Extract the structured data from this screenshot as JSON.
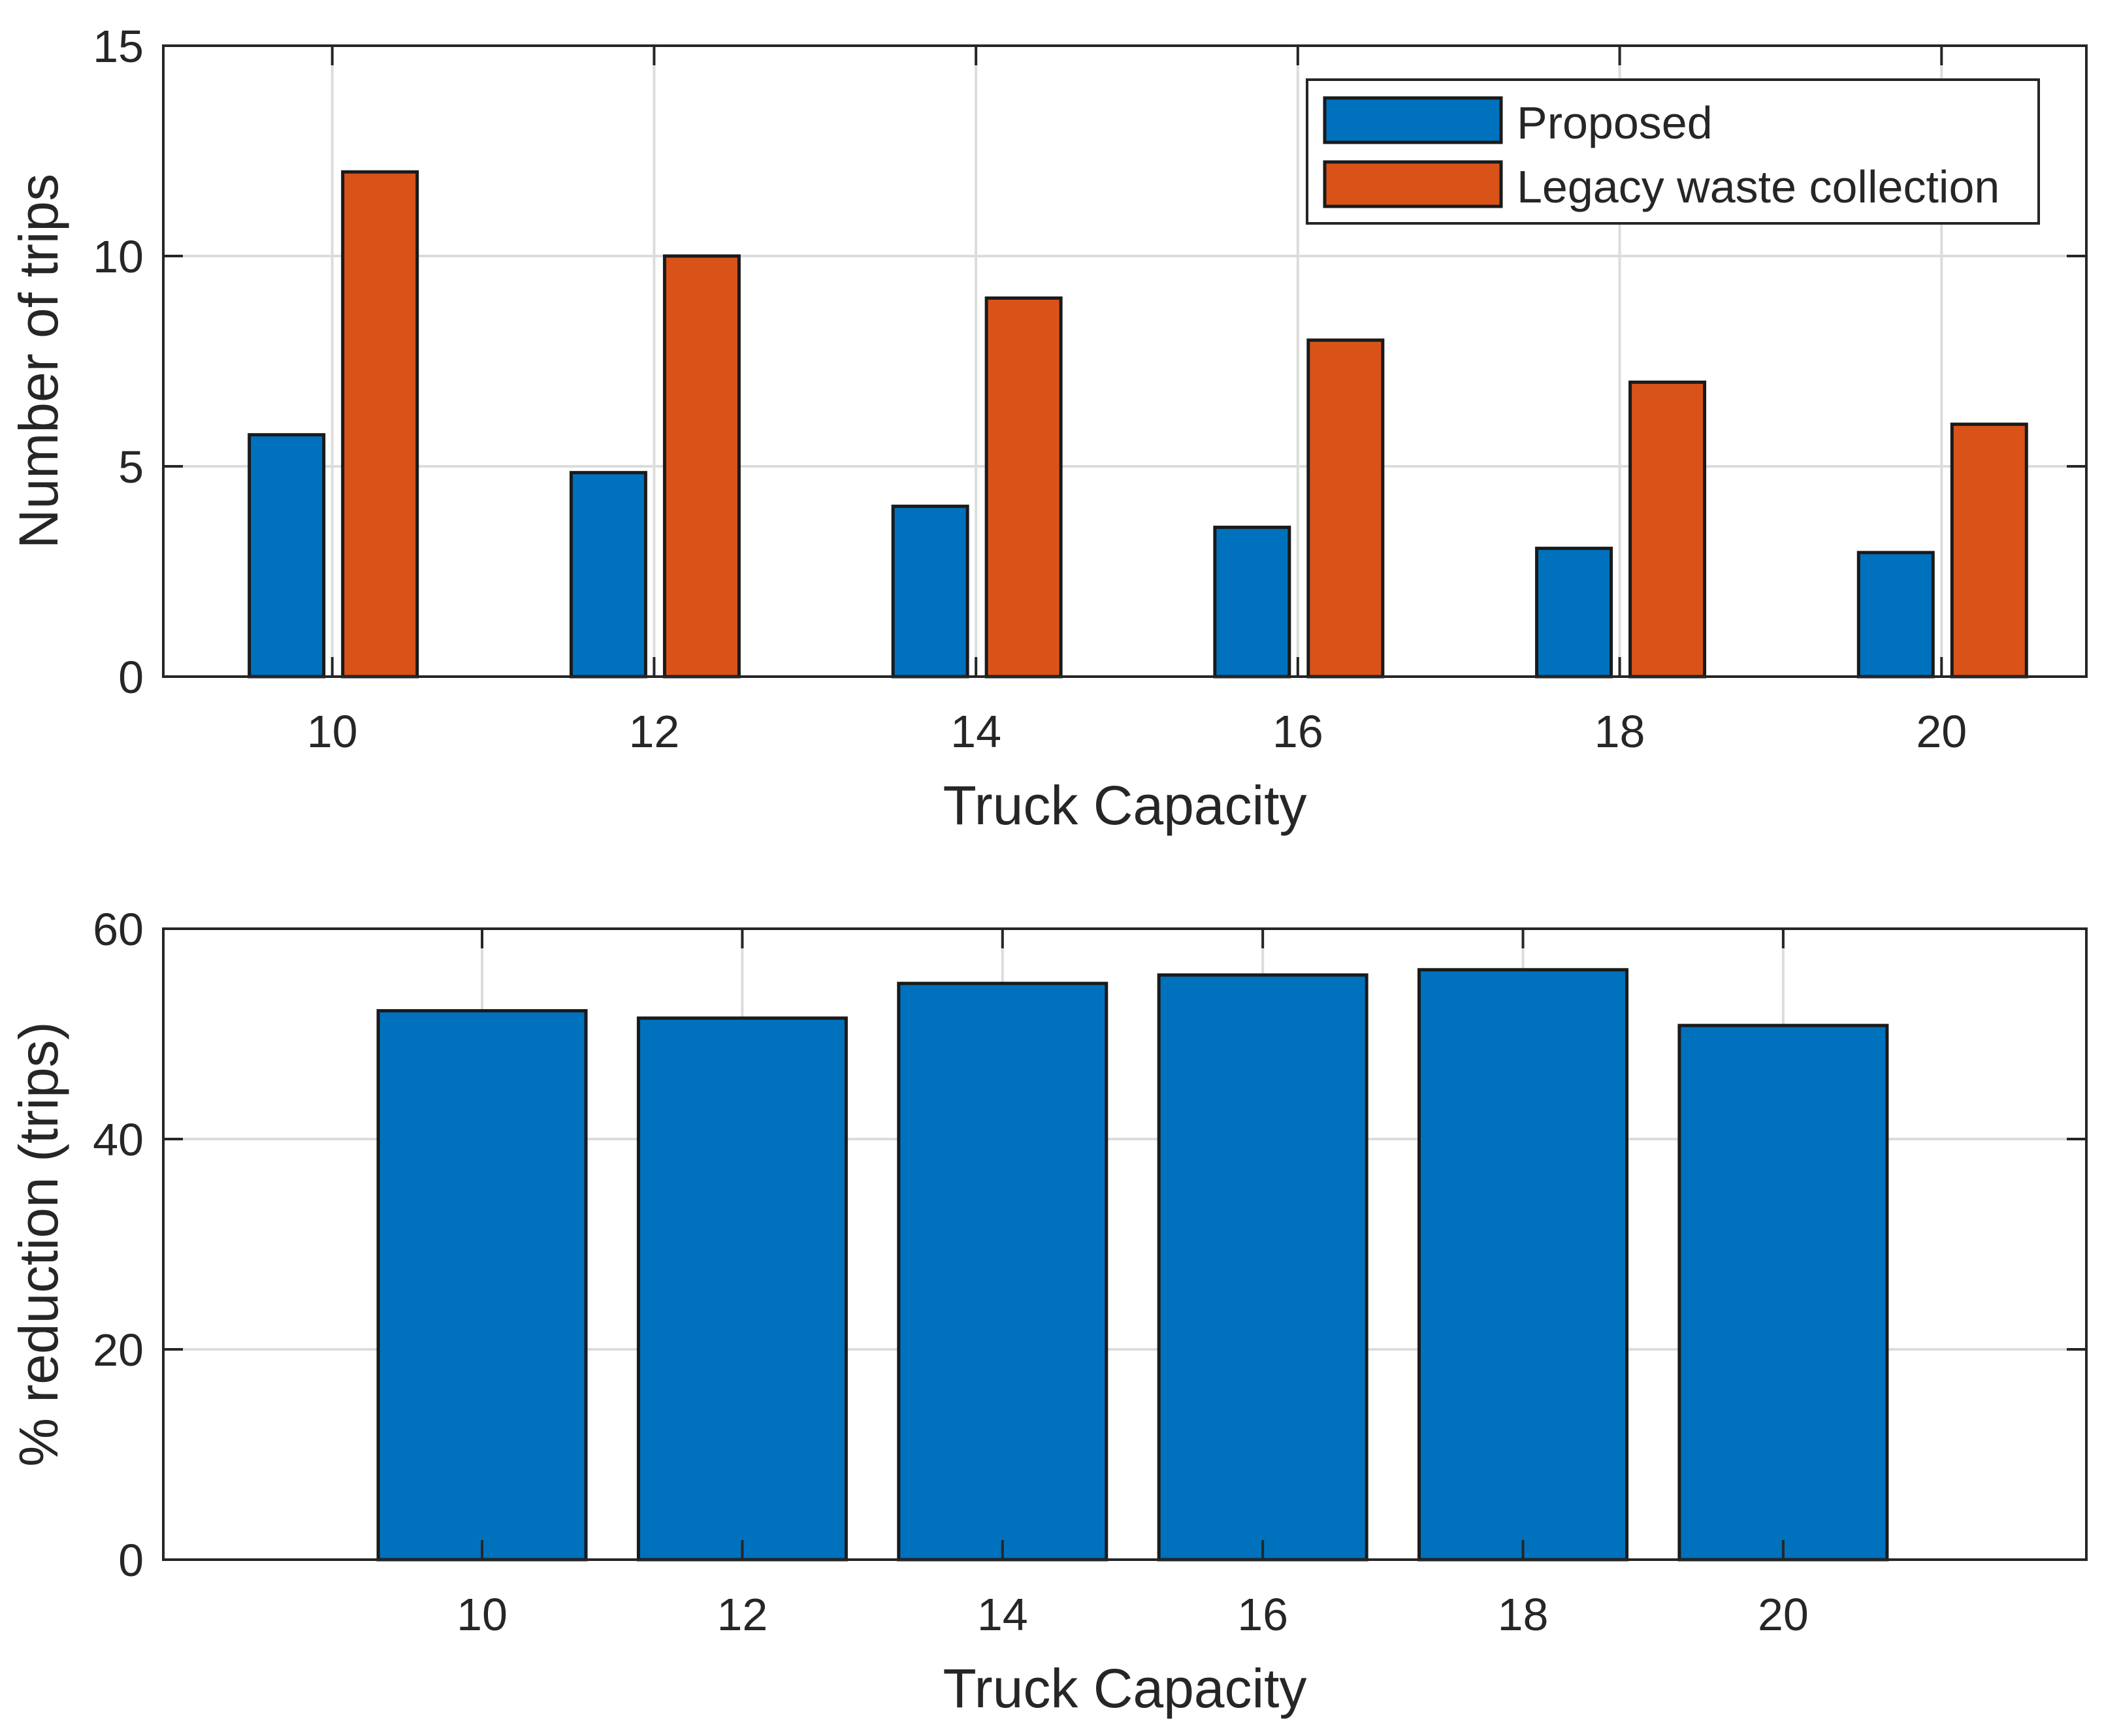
{
  "chart_data": [
    {
      "type": "bar",
      "xlabel": "Truck Capacity",
      "ylabel": "Number of trips",
      "categories": [
        "10",
        "12",
        "14",
        "16",
        "18",
        "20"
      ],
      "ylim": [
        0,
        15
      ],
      "yticks": [
        "0",
        "5",
        "10",
        "15"
      ],
      "grid": true,
      "legend": "top-right",
      "series": [
        {
          "name": "Proposed",
          "color": "#0072BD",
          "values": [
            5.75,
            4.85,
            4.05,
            3.55,
            3.05,
            2.95
          ]
        },
        {
          "name": "Legacy waste collection",
          "color": "#D95319",
          "values": [
            12,
            10,
            9,
            8,
            7,
            6
          ]
        }
      ]
    },
    {
      "type": "bar",
      "xlabel": "Truck Capacity",
      "ylabel": "% reduction (trips)",
      "categories": [
        "10",
        "12",
        "14",
        "16",
        "18",
        "20"
      ],
      "ylim": [
        0,
        60
      ],
      "yticks": [
        "0",
        "20",
        "40",
        "60"
      ],
      "grid": true,
      "series": [
        {
          "color": "#0072BD",
          "values": [
            52.2,
            51.5,
            54.8,
            55.6,
            56.1,
            50.8
          ]
        }
      ]
    }
  ]
}
